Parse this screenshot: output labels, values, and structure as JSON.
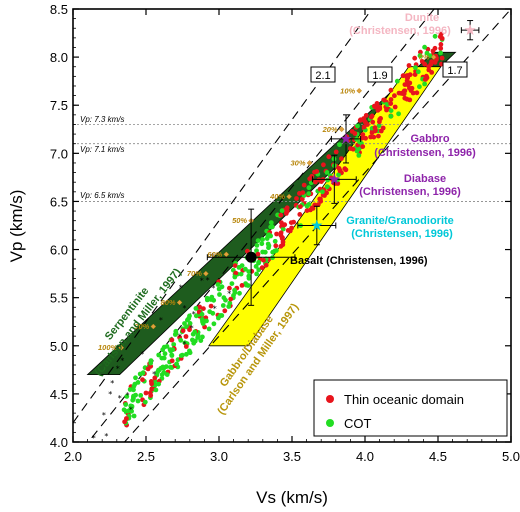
{
  "chart_data": {
    "type": "scatter",
    "xlabel": "Vs (km/s)",
    "ylabel": "Vp (km/s)",
    "xlim": [
      2.0,
      5.0
    ],
    "ylim": [
      4.0,
      8.5
    ],
    "xticks": [
      "2.0",
      "2.5",
      "3.0",
      "3.5",
      "4.0",
      "4.5",
      "5.0"
    ],
    "yticks": [
      "4.0",
      "4.5",
      "5.0",
      "5.5",
      "6.0",
      "6.5",
      "7.0",
      "7.5",
      "8.0",
      "8.5"
    ],
    "ratio_lines": [
      {
        "label": "2.1",
        "slope": 2.1
      },
      {
        "label": "1.9",
        "slope": 1.9
      },
      {
        "label": "1.7",
        "slope": 1.7
      }
    ],
    "reference_lines": [
      {
        "label": "Vp: 7.3 km/s",
        "vp": 7.3
      },
      {
        "label": "Vp: 7.1 km/s",
        "vp": 7.1
      },
      {
        "label": "Vp: 6.5 km/s",
        "vp": 6.5
      }
    ],
    "fields": [
      {
        "name": "Serpentinite",
        "ref": "(Carlson and Miller, 1997)",
        "color": "#1e5c1e",
        "polygon": [
          [
            2.1,
            4.7
          ],
          [
            4.47,
            8.05
          ],
          [
            4.62,
            8.05
          ],
          [
            2.32,
            4.7
          ]
        ]
      },
      {
        "name": "Gabbro/Diabase",
        "ref": "(Carlson and Miller, 1997)",
        "color": "#ffff00",
        "polygon": [
          [
            2.93,
            5.0
          ],
          [
            4.3,
            7.9
          ],
          [
            4.52,
            7.9
          ],
          [
            3.2,
            5.0
          ]
        ]
      }
    ],
    "serpentinization_labels": [
      {
        "text": "0%",
        "vs": 4.47,
        "vp": 8.0
      },
      {
        "text": "10%",
        "vs": 3.96,
        "vp": 7.65
      },
      {
        "text": "20%",
        "vs": 3.84,
        "vp": 7.25
      },
      {
        "text": "30%",
        "vs": 3.62,
        "vp": 6.9
      },
      {
        "text": "40%",
        "vs": 3.48,
        "vp": 6.55
      },
      {
        "text": "50%",
        "vs": 3.22,
        "vp": 6.3
      },
      {
        "text": "60%",
        "vs": 3.05,
        "vp": 5.95
      },
      {
        "text": "70%",
        "vs": 2.91,
        "vp": 5.75
      },
      {
        "text": "80%",
        "vs": 2.73,
        "vp": 5.45
      },
      {
        "text": "90%",
        "vs": 2.55,
        "vp": 5.2
      },
      {
        "text": "100%",
        "vs": 2.33,
        "vp": 4.98
      }
    ],
    "reference_samples": [
      {
        "name": "Dunite",
        "ref": "(Christensen, 1996)",
        "vs": 4.72,
        "vp": 8.28,
        "err_vs": 0.06,
        "err_vp": 0.1,
        "color": "#f4b6c2"
      },
      {
        "name": "Gabbro",
        "ref": "(Christensen, 1996)",
        "vs": 3.87,
        "vp": 7.15,
        "err_vs": 0.1,
        "err_vp": 0.25,
        "color": "#8e24aa"
      },
      {
        "name": "Diabase",
        "ref": "(Christensen, 1996)",
        "vs": 3.79,
        "vp": 6.73,
        "err_vs": 0.15,
        "err_vp": 0.25,
        "color": "#8e24aa"
      },
      {
        "name": "Granite/Granodiorite",
        "ref": "(Christensen, 1996)",
        "vs": 3.67,
        "vp": 6.25,
        "err_vs": 0.13,
        "err_vp": 0.2,
        "color": "#00c8d8"
      },
      {
        "name": "Basalt (Christensen, 1996)",
        "ref": "",
        "vs": 3.22,
        "vp": 5.92,
        "err_vs": 0.3,
        "err_vp": 0.5,
        "color": "#000000"
      }
    ],
    "series": [
      {
        "name": "Thin oceanic domain",
        "color": "#e8141c"
      },
      {
        "name": "COT",
        "color": "#22dd22"
      }
    ],
    "legend_position": "bottom-right"
  }
}
